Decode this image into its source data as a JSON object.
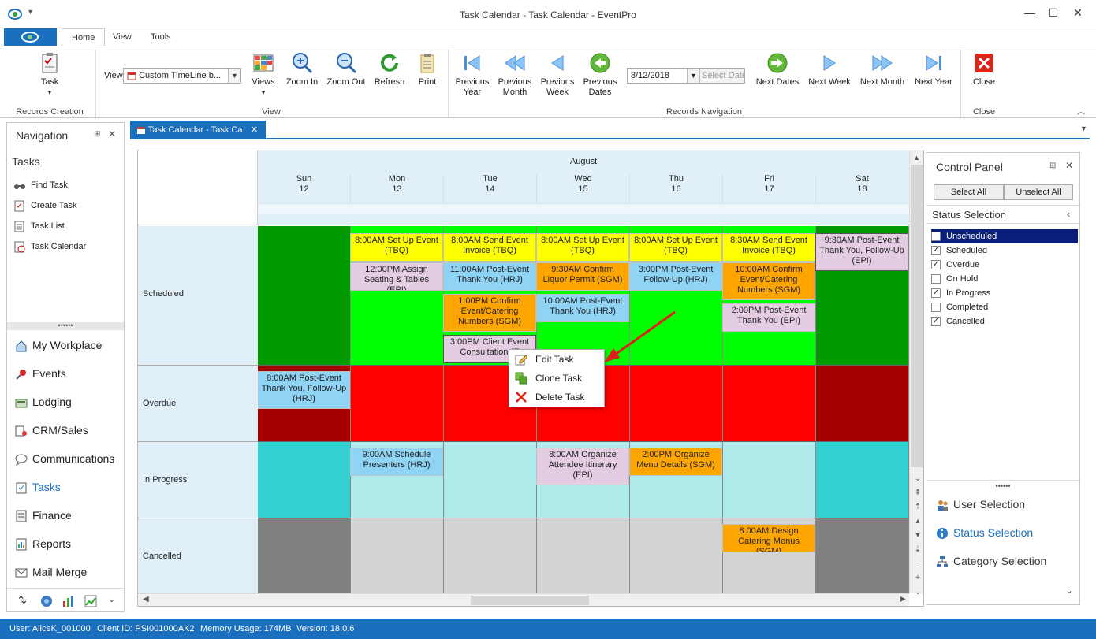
{
  "window": {
    "title": "Task Calendar - Task Calendar - EventPro"
  },
  "ribbon_tabs": [
    "Home",
    "View",
    "Tools"
  ],
  "ribbon": {
    "task_label": "Task",
    "records_creation": "Records Creation",
    "view_label": "View",
    "view_select": "Custom TimeLine b...",
    "views": "Views",
    "zoom_in": "Zoom In",
    "zoom_out": "Zoom Out",
    "refresh": "Refresh",
    "print": "Print",
    "view_group": "View",
    "prev_year_1": "Previous",
    "prev_year_2": "Year",
    "prev_month_1": "Previous",
    "prev_month_2": "Month",
    "prev_week_1": "Previous",
    "prev_week_2": "Week",
    "prev_dates_1": "Previous",
    "prev_dates_2": "Dates",
    "date_value": "8/12/2018",
    "select_date": "Select Date",
    "next_dates": "Next Dates",
    "next_week": "Next Week",
    "next_month": "Next Month",
    "next_year": "Next Year",
    "records_navigation": "Records Navigation",
    "close": "Close",
    "close_group": "Close"
  },
  "navigation": {
    "title": "Navigation",
    "section": "Tasks",
    "task_items": [
      "Find Task",
      "Create Task",
      "Task List",
      "Task Calendar"
    ],
    "modules": [
      "My Workplace",
      "Events",
      "Lodging",
      "CRM/Sales",
      "Communications",
      "Tasks",
      "Finance",
      "Reports",
      "Mail Merge"
    ]
  },
  "document_tab": "Task Calendar - Task Ca",
  "calendar": {
    "month": "August",
    "days": [
      {
        "name": "Sun",
        "num": "12"
      },
      {
        "name": "Mon",
        "num": "13"
      },
      {
        "name": "Tue",
        "num": "14"
      },
      {
        "name": "Wed",
        "num": "15"
      },
      {
        "name": "Thu",
        "num": "16"
      },
      {
        "name": "Fri",
        "num": "17"
      },
      {
        "name": "Sat",
        "num": "18"
      }
    ],
    "rows": [
      "Scheduled",
      "Overdue",
      "In Progress",
      "Cancelled"
    ],
    "appointments": {
      "sched_mon_1": "8:00AM Set Up Event (TBQ)",
      "sched_mon_2": "12:00PM Assign Seating & Tables (EPI)",
      "sched_tue_1": "8:00AM Send Event Invoice (TBQ)",
      "sched_tue_2": "11:00AM Post-Event Thank You (HRJ)",
      "sched_tue_3": "1:00PM Confirm Event/Catering Numbers (SGM)",
      "sched_tue_4": "3:00PM Client Event Consultation (E",
      "sched_wed_1": "8:00AM Set Up Event (TBQ)",
      "sched_wed_2": "9:30AM Confirm Liquor Permit (SGM)",
      "sched_wed_3": "10:00AM Post-Event Thank You (HRJ)",
      "sched_thu_1": "8:00AM Set Up Event (TBQ)",
      "sched_thu_2": "3:00PM Post-Event Follow-Up (HRJ)",
      "sched_fri_1": "8:30AM Send Event Invoice (TBQ)",
      "sched_fri_2": "10:00AM Confirm Event/Catering Numbers (SGM)",
      "sched_fri_3": "2:00PM Post-Event Thank You (EPI)",
      "sched_sat_1": "9:30AM Post-Event Thank You, Follow-Up (EPI)",
      "over_sun_1": "8:00AM Post-Event Thank You, Follow-Up (HRJ)",
      "prog_mon_1": "9:00AM Schedule Presenters (HRJ)",
      "prog_wed_1": "8:00AM Organize Attendee Itinerary (EPI)",
      "prog_thu_1": "2:00PM Organize Menu Details (SGM)",
      "canc_fri_1": "8:00AM Design Catering Menus (SGM)"
    }
  },
  "context_menu": [
    "Edit Task",
    "Clone Task",
    "Delete Task"
  ],
  "control_panel": {
    "title": "Control Panel",
    "select_all": "Select All",
    "unselect_all": "Unselect All",
    "status_selection": "Status Selection",
    "statuses": [
      {
        "label": "Unscheduled",
        "checked": false
      },
      {
        "label": "Scheduled",
        "checked": true
      },
      {
        "label": "Overdue",
        "checked": true
      },
      {
        "label": "On Hold",
        "checked": false
      },
      {
        "label": "In Progress",
        "checked": true
      },
      {
        "label": "Completed",
        "checked": false
      },
      {
        "label": "Cancelled",
        "checked": true
      }
    ],
    "user_selection": "User Selection",
    "status_selection_link": "Status Selection",
    "category_selection": "Category Selection"
  },
  "statusbar": {
    "user": "User: AliceK_001000",
    "client": "Client ID: PSI001000AK2",
    "memory": "Memory Usage: 174MB",
    "version": "Version: 18.0.6"
  },
  "colors": {
    "accent": "#1a6fbf",
    "scheduled_bg": "#00ff00",
    "scheduled_weekend": "#009900",
    "overdue_bg": "#ff0000",
    "overdue_weekend": "#a50000",
    "inprogress_bg": "#b0ebeb",
    "inprogress_weekend": "#33d1d1",
    "cancelled_bg": "#d3d3d3",
    "cancelled_weekend": "#808080"
  }
}
